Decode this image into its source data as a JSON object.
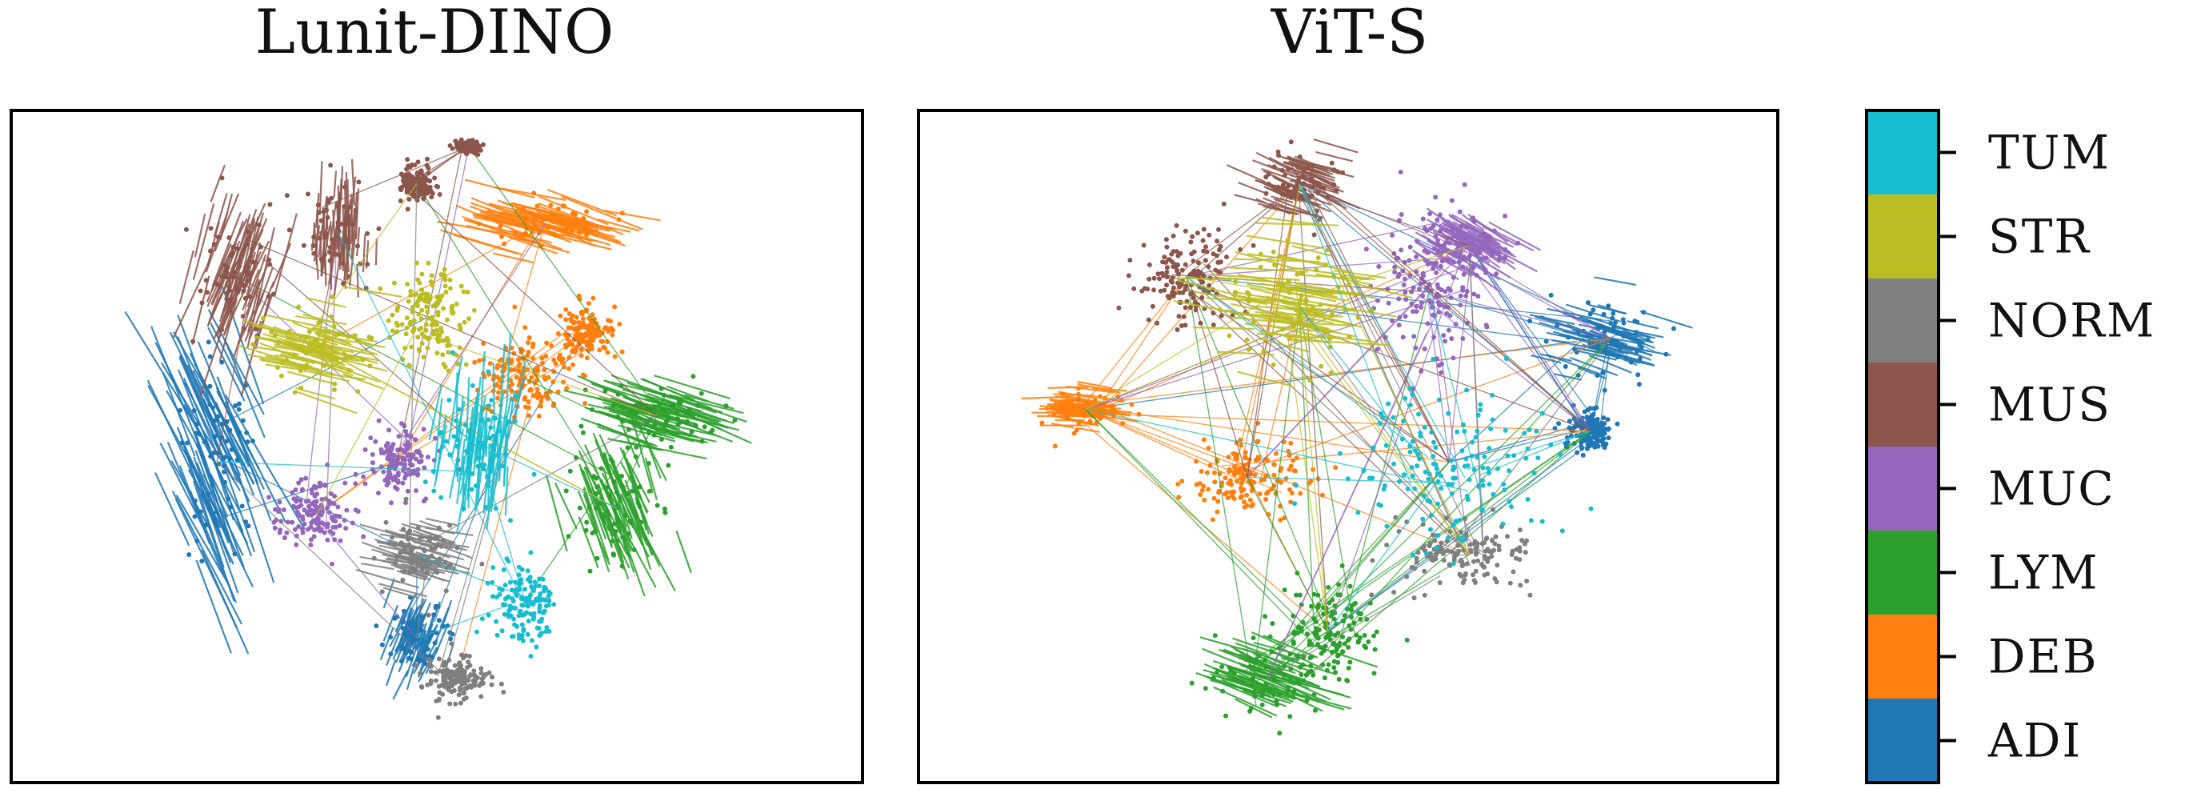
{
  "chart_data": [
    {
      "type": "scatter",
      "title": "Lunit-DINO",
      "axes_visible": false,
      "points_connected_by_lines": true,
      "clusters": [
        {
          "class": "ADI",
          "regions": [
            {
              "cx": -0.55,
              "cy": -0.05,
              "rx": 0.09,
              "ry": 0.42,
              "shape": "fan"
            },
            {
              "cx": -0.05,
              "cy": -0.62,
              "rx": 0.07,
              "ry": 0.12,
              "shape": "fan"
            }
          ]
        },
        {
          "class": "DEB",
          "regions": [
            {
              "cx": 0.27,
              "cy": 0.72,
              "rx": 0.18,
              "ry": 0.07,
              "shape": "fan"
            },
            {
              "cx": 0.22,
              "cy": 0.22,
              "rx": 0.1,
              "ry": 0.12,
              "shape": "blob"
            },
            {
              "cx": 0.37,
              "cy": 0.37,
              "rx": 0.06,
              "ry": 0.08,
              "shape": "blob"
            }
          ]
        },
        {
          "class": "LYM",
          "regions": [
            {
              "cx": 0.55,
              "cy": 0.1,
              "rx": 0.18,
              "ry": 0.1,
              "shape": "fan"
            },
            {
              "cx": 0.45,
              "cy": -0.2,
              "rx": 0.12,
              "ry": 0.22,
              "shape": "fan"
            }
          ]
        },
        {
          "class": "MUC",
          "regions": [
            {
              "cx": -0.3,
              "cy": -0.22,
              "rx": 0.09,
              "ry": 0.1,
              "shape": "blob"
            },
            {
              "cx": -0.1,
              "cy": -0.05,
              "rx": 0.08,
              "ry": 0.1,
              "shape": "blob"
            }
          ]
        },
        {
          "class": "MUS",
          "regions": [
            {
              "cx": -0.5,
              "cy": 0.55,
              "rx": 0.12,
              "ry": 0.22,
              "shape": "fan"
            },
            {
              "cx": -0.25,
              "cy": 0.7,
              "rx": 0.08,
              "ry": 0.15,
              "shape": "fan"
            },
            {
              "cx": -0.05,
              "cy": 0.85,
              "rx": 0.04,
              "ry": 0.06,
              "shape": "blob"
            },
            {
              "cx": 0.08,
              "cy": 0.97,
              "rx": 0.03,
              "ry": 0.02,
              "shape": "blob"
            }
          ]
        },
        {
          "class": "NORM",
          "regions": [
            {
              "cx": -0.05,
              "cy": -0.35,
              "rx": 0.1,
              "ry": 0.12,
              "shape": "fan"
            },
            {
              "cx": 0.05,
              "cy": -0.75,
              "rx": 0.08,
              "ry": 0.07,
              "shape": "blob"
            }
          ]
        },
        {
          "class": "STR",
          "regions": [
            {
              "cx": -0.3,
              "cy": 0.32,
              "rx": 0.13,
              "ry": 0.13,
              "shape": "fan"
            },
            {
              "cx": -0.02,
              "cy": 0.42,
              "rx": 0.1,
              "ry": 0.15,
              "shape": "blob"
            }
          ]
        },
        {
          "class": "TUM",
          "regions": [
            {
              "cx": 0.1,
              "cy": 0.0,
              "rx": 0.1,
              "ry": 0.2,
              "shape": "fan"
            },
            {
              "cx": 0.22,
              "cy": -0.5,
              "rx": 0.08,
              "ry": 0.12,
              "shape": "blob"
            }
          ]
        }
      ]
    },
    {
      "type": "scatter",
      "title": "ViT-S",
      "axes_visible": false,
      "points_connected_by_lines": true,
      "clusters": [
        {
          "class": "ADI",
          "regions": [
            {
              "cx": 0.65,
              "cy": 0.35,
              "rx": 0.12,
              "ry": 0.12,
              "shape": "fan"
            },
            {
              "cx": 0.6,
              "cy": 0.05,
              "rx": 0.05,
              "ry": 0.06,
              "shape": "blob"
            }
          ]
        },
        {
          "class": "DEB",
          "regions": [
            {
              "cx": -0.65,
              "cy": 0.12,
              "rx": 0.1,
              "ry": 0.07,
              "shape": "fan"
            },
            {
              "cx": -0.25,
              "cy": -0.1,
              "rx": 0.15,
              "ry": 0.12,
              "shape": "blob"
            }
          ]
        },
        {
          "class": "LYM",
          "regions": [
            {
              "cx": -0.2,
              "cy": -0.75,
              "rx": 0.15,
              "ry": 0.12,
              "shape": "fan"
            },
            {
              "cx": -0.05,
              "cy": -0.6,
              "rx": 0.12,
              "ry": 0.15,
              "shape": "blob"
            }
          ]
        },
        {
          "class": "MUC",
          "regions": [
            {
              "cx": 0.3,
              "cy": 0.65,
              "rx": 0.12,
              "ry": 0.1,
              "shape": "fan"
            },
            {
              "cx": 0.2,
              "cy": 0.5,
              "rx": 0.12,
              "ry": 0.25,
              "shape": "blob"
            }
          ]
        },
        {
          "class": "MUS",
          "regions": [
            {
              "cx": -0.12,
              "cy": 0.85,
              "rx": 0.1,
              "ry": 0.1,
              "shape": "fan"
            },
            {
              "cx": -0.4,
              "cy": 0.55,
              "rx": 0.12,
              "ry": 0.15,
              "shape": "blob"
            }
          ]
        },
        {
          "class": "NORM",
          "regions": [
            {
              "cx": 0.3,
              "cy": -0.35,
              "rx": 0.15,
              "ry": 0.12,
              "shape": "blob"
            }
          ]
        },
        {
          "class": "STR",
          "regions": [
            {
              "cx": -0.12,
              "cy": 0.45,
              "rx": 0.18,
              "ry": 0.22,
              "shape": "fan"
            }
          ]
        },
        {
          "class": "TUM",
          "regions": [
            {
              "cx": 0.25,
              "cy": -0.05,
              "rx": 0.25,
              "ry": 0.25,
              "shape": "blob"
            }
          ]
        }
      ]
    }
  ],
  "legend": {
    "placement": "right",
    "entries": [
      {
        "label": "TUM",
        "color": "#17becf"
      },
      {
        "label": "STR",
        "color": "#bcbd22"
      },
      {
        "label": "NORM",
        "color": "#7f7f7f"
      },
      {
        "label": "MUS",
        "color": "#8c564b"
      },
      {
        "label": "MUC",
        "color": "#9467bd"
      },
      {
        "label": "LYM",
        "color": "#2ca02c"
      },
      {
        "label": "DEB",
        "color": "#ff7f0e"
      },
      {
        "label": "ADI",
        "color": "#1f77b4"
      }
    ]
  }
}
